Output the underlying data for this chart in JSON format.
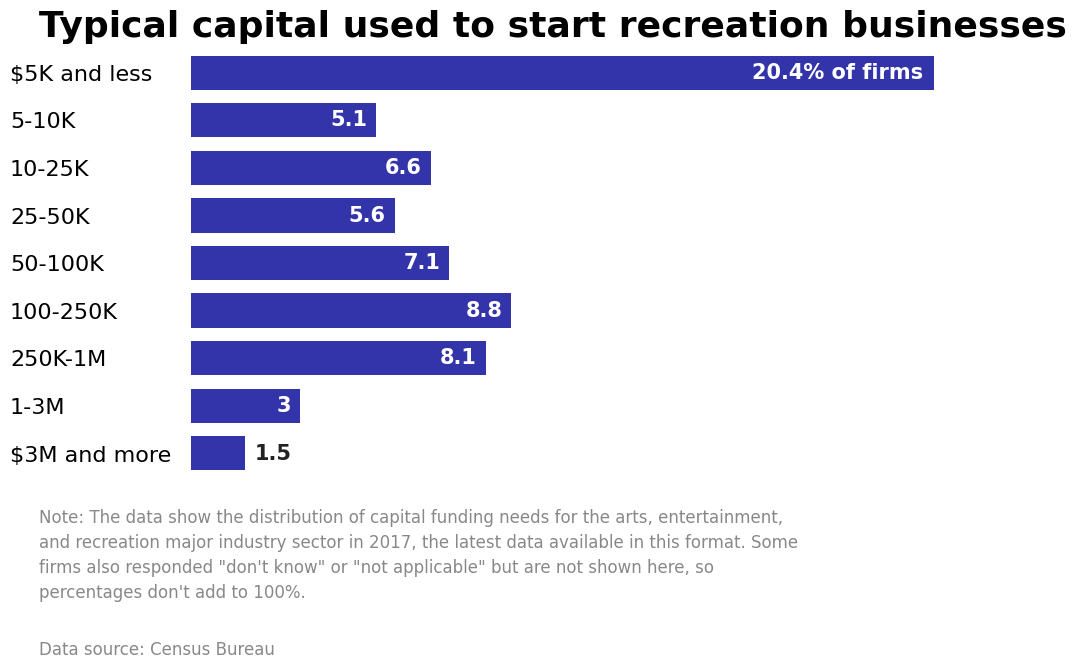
{
  "title": "Typical capital used to start recreation businesses",
  "categories": [
    "$5K and less",
    "5-10K",
    "10-25K",
    "25-50K",
    "50-100K",
    "100-250K",
    "250K-1M",
    "1-3M",
    "$3M and more"
  ],
  "values": [
    20.4,
    5.1,
    6.6,
    5.6,
    7.1,
    8.8,
    8.1,
    3.0,
    1.5
  ],
  "bar_color": "#3333aa",
  "label_color_inside": "#ffffff",
  "label_color_outside": "#222222",
  "bar_height": 0.72,
  "xlim": [
    0,
    24
  ],
  "title_fontsize": 26,
  "label_fontsize": 15,
  "tick_fontsize": 16,
  "note_text": "Note: The data show the distribution of capital funding needs for the arts, entertainment,\nand recreation major industry sector in 2017, the latest data available in this format. Some\nfirms also responded \"don't know\" or \"not applicable\" but are not shown here, so\npercentages don't add to 100%.",
  "source_text": "Data source: Census Bureau",
  "background_color": "#ffffff",
  "special_label": "20.4% of firms",
  "inside_threshold": 2.5
}
